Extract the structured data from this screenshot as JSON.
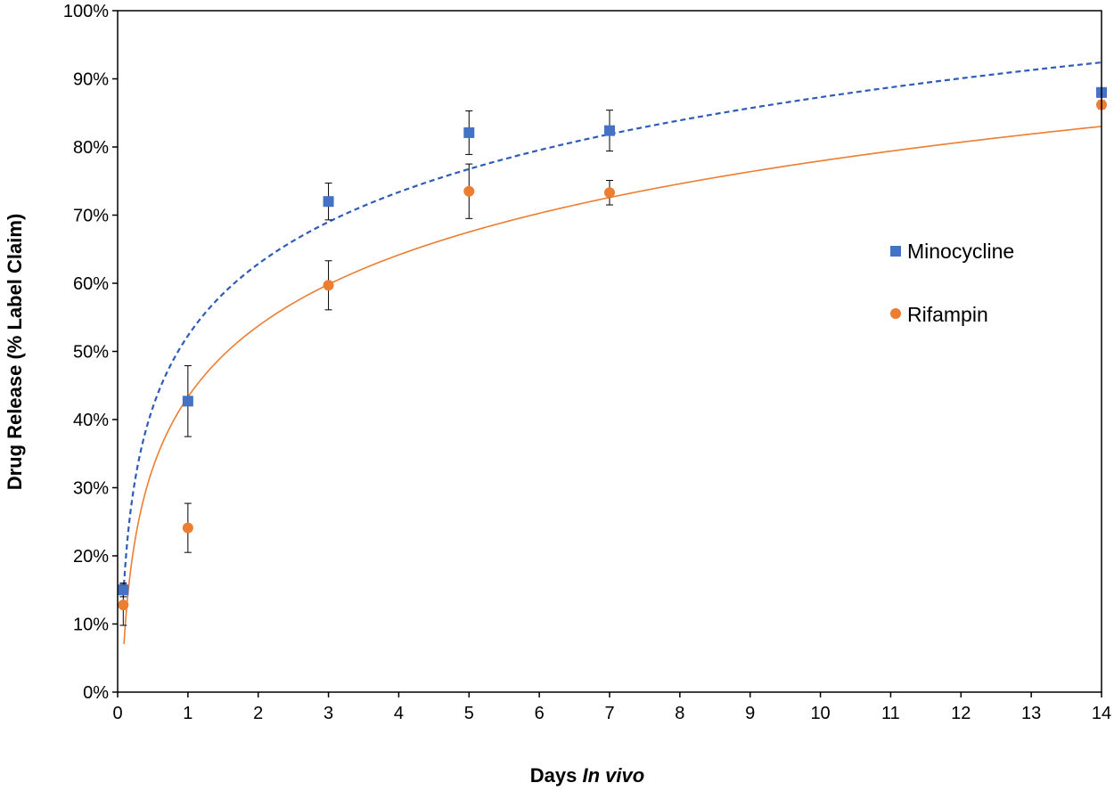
{
  "chart_data": {
    "type": "scatter",
    "xlabel_prefix": "Days",
    "xlabel_italic": "In vivo",
    "ylabel": "Drug Release (% Label Claim)",
    "xlim": [
      0,
      14
    ],
    "ylim": [
      0,
      100
    ],
    "x_ticks": [
      0,
      1,
      2,
      3,
      4,
      5,
      6,
      7,
      8,
      9,
      10,
      11,
      12,
      13,
      14
    ],
    "y_ticks": [
      0,
      10,
      20,
      30,
      40,
      50,
      60,
      70,
      80,
      90,
      100
    ],
    "y_tick_suffix": "%",
    "grid": false,
    "legend_position": "right",
    "series": [
      {
        "name": "Minocycline",
        "marker": "square",
        "color": "#4472C4",
        "x": [
          0.08,
          1,
          3,
          5,
          7,
          14
        ],
        "y": [
          15,
          42.7,
          72,
          82.1,
          82.4,
          88
        ],
        "err": [
          1,
          5.2,
          2.7,
          3.2,
          3,
          0.7
        ],
        "trend": {
          "type": "log",
          "a": 52.3,
          "b": 15.2,
          "style": "dashed",
          "color": "#2E5CB8"
        }
      },
      {
        "name": "Rifampin",
        "marker": "circle",
        "color": "#ED7D31",
        "x": [
          0.08,
          1,
          3,
          5,
          7,
          14
        ],
        "y": [
          12.8,
          24.1,
          59.7,
          73.5,
          73.3,
          86.2
        ],
        "err": [
          3,
          3.6,
          3.6,
          4,
          1.8,
          0.6
        ],
        "trend": {
          "type": "log",
          "a": 43.3,
          "b": 15.05,
          "style": "solid",
          "color": "#ED7D31"
        }
      }
    ]
  }
}
